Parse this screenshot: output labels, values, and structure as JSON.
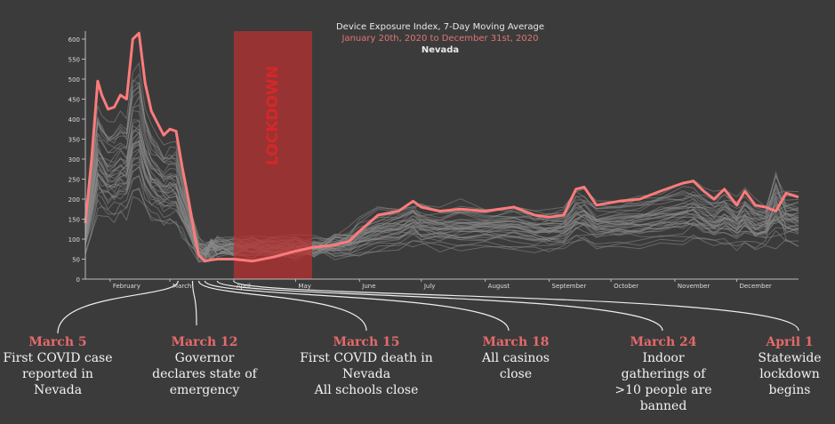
{
  "title": {
    "line1": "Device Exposure Index, 7-Day Moving Average",
    "line2": "January 20th, 2020 to December 31st, 2020",
    "line3": "Nevada"
  },
  "colors": {
    "background": "#3b3b3b",
    "highlight_line": "#ff7b7b",
    "background_lines": "#8a8a8a",
    "lockdown_band": "#b83232",
    "lockdown_text": "#d42828",
    "annotation_date": "#e46a6a"
  },
  "chart_data": {
    "type": "line",
    "title": "Device Exposure Index, 7-Day Moving Average",
    "subtitle": "January 20th, 2020 to December 31st, 2020",
    "region": "Nevada",
    "x_ticks": [
      "February",
      "March",
      "April",
      "May",
      "June",
      "July",
      "August",
      "September",
      "October",
      "November",
      "December"
    ],
    "y_ticks": [
      0,
      50,
      100,
      150,
      200,
      250,
      300,
      350,
      400,
      450,
      500,
      550,
      600
    ],
    "ylim": [
      0,
      620
    ],
    "xlim": [
      "2020-01-20",
      "2020-12-31"
    ],
    "lockdown_band": {
      "label": "LOCKDOWN",
      "start": "2020-04-01",
      "end": "2020-05-09"
    },
    "highlight_series": {
      "x": [
        "2020-01-20",
        "2020-01-23",
        "2020-01-26",
        "2020-01-28",
        "2020-01-31",
        "2020-02-03",
        "2020-02-06",
        "2020-02-09",
        "2020-02-12",
        "2020-02-15",
        "2020-02-18",
        "2020-02-21",
        "2020-02-24",
        "2020-02-27",
        "2020-03-01",
        "2020-03-04",
        "2020-03-07",
        "2020-03-10",
        "2020-03-13",
        "2020-03-15",
        "2020-03-18",
        "2020-03-21",
        "2020-03-24",
        "2020-04-01",
        "2020-04-10",
        "2020-04-20",
        "2020-05-01",
        "2020-05-10",
        "2020-05-20",
        "2020-05-27",
        "2020-06-01",
        "2020-06-10",
        "2020-06-20",
        "2020-06-27",
        "2020-07-01",
        "2020-07-10",
        "2020-07-20",
        "2020-08-01",
        "2020-08-15",
        "2020-08-25",
        "2020-09-01",
        "2020-09-08",
        "2020-09-14",
        "2020-09-18",
        "2020-09-24",
        "2020-10-05",
        "2020-10-15",
        "2020-10-25",
        "2020-11-05",
        "2020-11-10",
        "2020-11-15",
        "2020-11-20",
        "2020-11-25",
        "2020-12-01",
        "2020-12-05",
        "2020-12-10",
        "2020-12-15",
        "2020-12-20",
        "2020-12-25",
        "2020-12-31"
      ],
      "y": [
        140,
        300,
        495,
        460,
        425,
        430,
        460,
        450,
        600,
        615,
        490,
        420,
        390,
        360,
        375,
        370,
        280,
        200,
        110,
        60,
        45,
        48,
        50,
        50,
        45,
        55,
        70,
        80,
        85,
        95,
        120,
        160,
        170,
        195,
        180,
        170,
        175,
        170,
        180,
        160,
        155,
        160,
        225,
        230,
        185,
        195,
        200,
        220,
        240,
        245,
        220,
        200,
        225,
        185,
        220,
        185,
        180,
        170,
        215,
        205
      ]
    },
    "background_series_note": ""
  },
  "annotations": [
    {
      "date": "March 5",
      "lines": [
        "First COVID case",
        "reported in",
        "Nevada"
      ]
    },
    {
      "date": "March 12",
      "lines": [
        "Governor",
        "declares state of",
        "emergency"
      ]
    },
    {
      "date": "March 15",
      "lines": [
        "First COVID death in",
        "Nevada",
        "All schools close"
      ]
    },
    {
      "date": "March 18",
      "lines": [
        "All casinos",
        "close"
      ]
    },
    {
      "date": "March 24",
      "lines": [
        "Indoor",
        "gatherings of",
        ">10 people are",
        "banned"
      ]
    },
    {
      "date": "April 1",
      "lines": [
        "Statewide",
        "lockdown",
        "begins"
      ]
    }
  ]
}
